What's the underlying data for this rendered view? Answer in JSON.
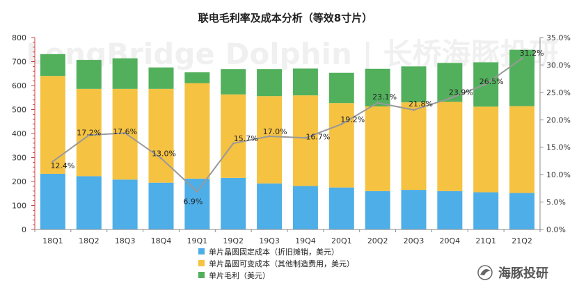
{
  "chart_data": {
    "type": "bar",
    "title": "联电毛利率及成本分析（等效8寸片）",
    "categories": [
      "18Q1",
      "18Q2",
      "18Q3",
      "18Q4",
      "19Q1",
      "19Q2",
      "19Q3",
      "19Q4",
      "20Q1",
      "20Q2",
      "20Q3",
      "20Q4",
      "21Q1",
      "21Q2"
    ],
    "stacked": true,
    "series": [
      {
        "name": "单片晶圆固定成本（折旧摊销，美元）",
        "color": "#4eaee8",
        "values": [
          232,
          222,
          208,
          195,
          212,
          215,
          192,
          181,
          175,
          160,
          165,
          160,
          155,
          152
        ]
      },
      {
        "name": "单片晶圆可变成本（其他制造费用，美元）",
        "color": "#f5c242",
        "values": [
          408,
          364,
          378,
          391,
          398,
          348,
          364,
          378,
          352,
          353,
          365,
          372,
          357,
          362
        ]
      },
      {
        "name": "单片毛利（美元）",
        "color": "#52b05c",
        "values": [
          91,
          121,
          127,
          89,
          45,
          106,
          113,
          112,
          126,
          157,
          150,
          162,
          185,
          235
        ]
      }
    ],
    "line": {
      "color": "#999999",
      "values": [
        12.4,
        17.2,
        17.6,
        13.0,
        6.9,
        15.7,
        17.0,
        16.7,
        19.2,
        23.1,
        21.8,
        23.9,
        26.5,
        31.2
      ],
      "labels": [
        "12.4%",
        "17.2%",
        "17.6%",
        "13.0%",
        "6.9%",
        "15.7%",
        "17.0%",
        "16.7%",
        "19.2%",
        "23.1%",
        "21.8%",
        "23.9%",
        "26.5%",
        "31.2%"
      ]
    },
    "ylim": [
      0,
      800
    ],
    "y_ticks": [
      "0",
      "100",
      "200",
      "300",
      "400",
      "500",
      "600",
      "700",
      "800"
    ],
    "y2lim": [
      0,
      35
    ],
    "y2_ticks": [
      "0.0%",
      "5.0%",
      "10.0%",
      "15.0%",
      "20.0%",
      "25.0%",
      "30.0%",
      "35.0%"
    ],
    "grid": false,
    "legend_position": "bottom",
    "watermark": "LongBridge Dolphin | 长桥海豚投研"
  },
  "brand": {
    "name": "海豚投研",
    "color": "#555555"
  }
}
